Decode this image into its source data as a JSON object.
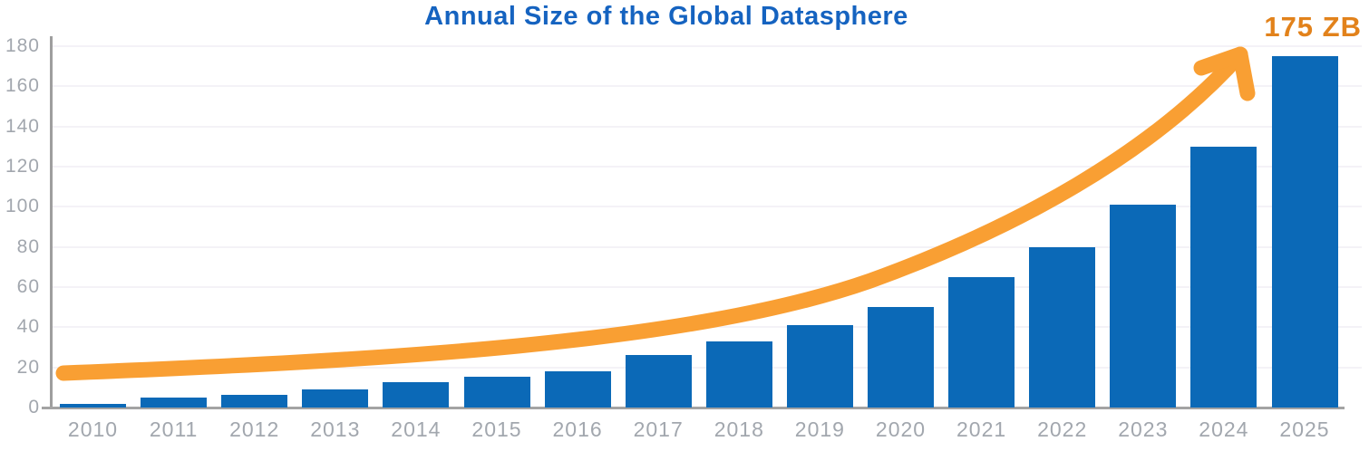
{
  "chart_data": {
    "type": "bar",
    "title": "Annual Size of the Global Datasphere",
    "categories": [
      "2010",
      "2011",
      "2012",
      "2013",
      "2014",
      "2015",
      "2016",
      "2017",
      "2018",
      "2019",
      "2020",
      "2021",
      "2022",
      "2023",
      "2024",
      "2025"
    ],
    "values": [
      2,
      5,
      6.5,
      9,
      12.5,
      15.5,
      18,
      26,
      33,
      41,
      50,
      65,
      80,
      101,
      130,
      175
    ],
    "unit": "ZB",
    "xlabel": "",
    "ylabel": "",
    "ylim": [
      0,
      180
    ],
    "ytick_step": 20,
    "yticks": [
      "0",
      "20",
      "40",
      "60",
      "80",
      "100",
      "120",
      "140",
      "160",
      "180"
    ],
    "grid": true,
    "legend_position": "none",
    "annotation": "175 ZB",
    "colors": {
      "bar": "#0b69b7",
      "arrow": "#f99f33",
      "annotation": "#e2821b",
      "title": "#1563c0",
      "axis_labels": "#a2a7ae",
      "axis_line": "#9e9e9e",
      "gridline": "#f4f2f7",
      "background": "#ffffff"
    }
  }
}
